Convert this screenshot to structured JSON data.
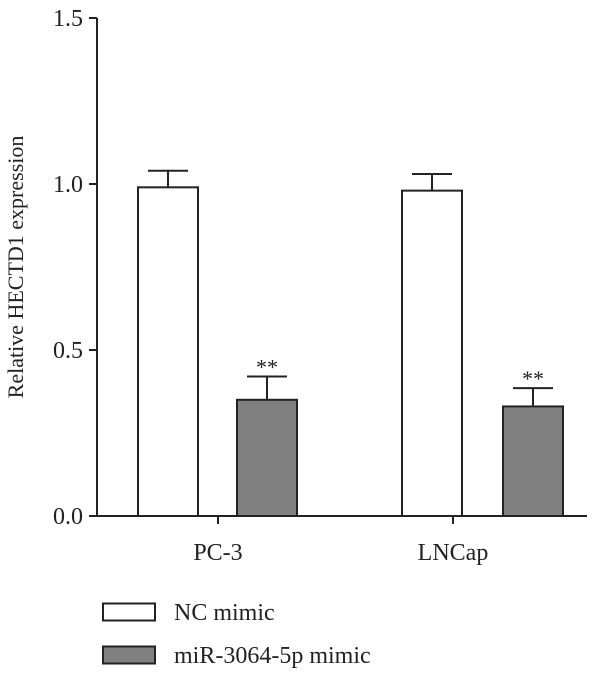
{
  "chart_data": {
    "type": "bar",
    "ylabel": "Relative HECTD1 expression",
    "xlabel": "",
    "title": "",
    "ylim": [
      0,
      1.5
    ],
    "yticks": [
      "0.0",
      "0.5",
      "1.0",
      "1.5"
    ],
    "categories": [
      "PC-3",
      "LNCap"
    ],
    "series": [
      {
        "name": "NC mimic",
        "values": [
          0.99,
          0.98
        ],
        "errors": [
          0.05,
          0.05
        ],
        "color": "#ffffff",
        "significance": [
          "",
          ""
        ]
      },
      {
        "name": "miR-3064-5p mimic",
        "values": [
          0.35,
          0.33
        ],
        "errors": [
          0.07,
          0.055
        ],
        "color": "#808080",
        "significance": [
          "**",
          "**"
        ]
      }
    ],
    "legend_position": "bottom-left"
  }
}
